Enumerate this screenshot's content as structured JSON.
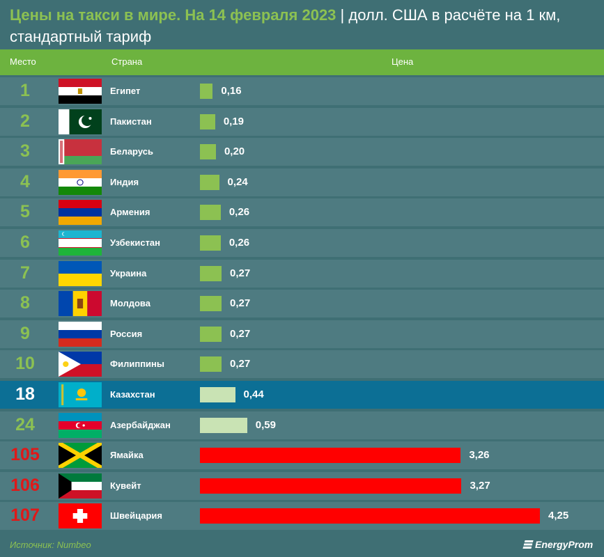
{
  "title": {
    "highlight": "Цены на такси в мире. На 14 февраля 2023",
    "separator": "|",
    "rest": "долл. США в расчёте на 1 км, стандартный тариф"
  },
  "header": {
    "place": "Место",
    "country": "Страна",
    "price": "Цена"
  },
  "colors": {
    "background": "#3f6f74",
    "row": "#4e7b81",
    "highlight_row": "#0c6f95",
    "header": "#6db33f",
    "bar_green": "#8cc152",
    "bar_light": "#c9e3b4",
    "bar_red": "#ff0000",
    "rank_red": "#e01818"
  },
  "chart_data": {
    "type": "bar",
    "orientation": "horizontal",
    "title": "Цены на такси в мире. На 14 февраля 2023 | долл. США в расчёте на 1 км, стандартный тариф",
    "columns": [
      "Место",
      "Страна",
      "Цена"
    ],
    "xlim": [
      0,
      4.25
    ],
    "rows": [
      {
        "rank": "1",
        "country": "Египет",
        "value": "0,16",
        "num": 0.16,
        "flag": "egypt-flag-icon",
        "color": "#8cc152",
        "rank_color": "green"
      },
      {
        "rank": "2",
        "country": "Пакистан",
        "value": "0,19",
        "num": 0.19,
        "flag": "pakistan-flag-icon",
        "color": "#8cc152",
        "rank_color": "green"
      },
      {
        "rank": "3",
        "country": "Беларусь",
        "value": "0,20",
        "num": 0.2,
        "flag": "belarus-flag-icon",
        "color": "#8cc152",
        "rank_color": "green"
      },
      {
        "rank": "4",
        "country": "Индия",
        "value": "0,24",
        "num": 0.24,
        "flag": "india-flag-icon",
        "color": "#8cc152",
        "rank_color": "green"
      },
      {
        "rank": "5",
        "country": "Армения",
        "value": "0,26",
        "num": 0.26,
        "flag": "armenia-flag-icon",
        "color": "#8cc152",
        "rank_color": "green"
      },
      {
        "rank": "6",
        "country": "Узбекистан",
        "value": "0,26",
        "num": 0.26,
        "flag": "uzbekistan-flag-icon",
        "color": "#8cc152",
        "rank_color": "green"
      },
      {
        "rank": "7",
        "country": "Украина",
        "value": "0,27",
        "num": 0.27,
        "flag": "ukraine-flag-icon",
        "color": "#8cc152",
        "rank_color": "green"
      },
      {
        "rank": "8",
        "country": "Молдова",
        "value": "0,27",
        "num": 0.27,
        "flag": "moldova-flag-icon",
        "color": "#8cc152",
        "rank_color": "green"
      },
      {
        "rank": "9",
        "country": "Россия",
        "value": "0,27",
        "num": 0.27,
        "flag": "russia-flag-icon",
        "color": "#8cc152",
        "rank_color": "green"
      },
      {
        "rank": "10",
        "country": "Филиппины",
        "value": "0,27",
        "num": 0.27,
        "flag": "philippines-flag-icon",
        "color": "#8cc152",
        "rank_color": "green"
      },
      {
        "rank": "18",
        "country": "Казахстан",
        "value": "0,44",
        "num": 0.44,
        "flag": "kazakhstan-flag-icon",
        "color": "#c9e3b4",
        "rank_color": "white",
        "highlight": true
      },
      {
        "rank": "24",
        "country": "Азербайджан",
        "value": "0,59",
        "num": 0.59,
        "flag": "azerbaijan-flag-icon",
        "color": "#c9e3b4",
        "rank_color": "green"
      },
      {
        "rank": "105",
        "country": "Ямайка",
        "value": "3,26",
        "num": 3.26,
        "flag": "jamaica-flag-icon",
        "color": "#ff0000",
        "rank_color": "red"
      },
      {
        "rank": "106",
        "country": "Кувейт",
        "value": "3,27",
        "num": 3.27,
        "flag": "kuwait-flag-icon",
        "color": "#ff0000",
        "rank_color": "red"
      },
      {
        "rank": "107",
        "country": "Швейцария",
        "value": "4,25",
        "num": 4.25,
        "flag": "switzerland-flag-icon",
        "color": "#ff0000",
        "rank_color": "red"
      }
    ]
  },
  "footer": {
    "source": "Источник: Numbeo",
    "logo": "EnergyProm"
  }
}
